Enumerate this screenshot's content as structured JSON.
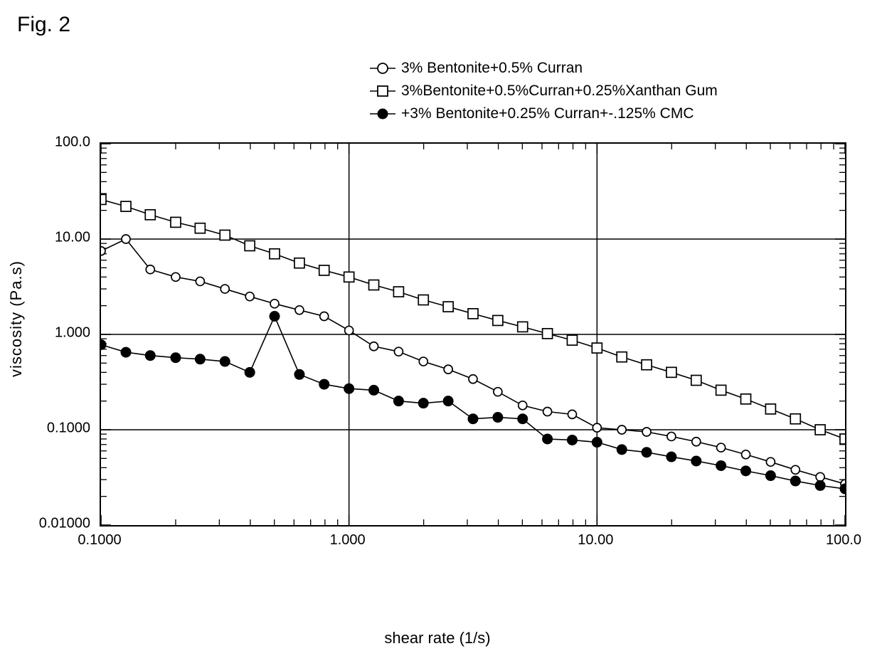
{
  "figure_label": "Fig. 2",
  "legend": {
    "position": "top-right",
    "fontsize": 21,
    "items": [
      {
        "marker": "circle-open",
        "label": "3% Bentonite+0.5% Curran"
      },
      {
        "marker": "square-open",
        "label": "3%Bentonite+0.5%Curran+0.25%Xanthan Gum"
      },
      {
        "marker": "circle-filled",
        "label": "+3% Bentonite+0.25% Curran+-.125% CMC"
      }
    ]
  },
  "chart": {
    "type": "line-scatter-loglog",
    "background_color": "#ffffff",
    "border_color": "#000000",
    "grid_color": "#000000",
    "xlabel": "shear rate (1/s)",
    "ylabel": "viscosity (Pa.s)",
    "label_fontsize": 22,
    "tick_fontsize": 20,
    "xscale": "log",
    "yscale": "log",
    "xlim": [
      0.1,
      100
    ],
    "ylim": [
      0.01,
      100
    ],
    "xticks": [
      0.1,
      1,
      10,
      100
    ],
    "xtick_labels": [
      "0.1000",
      "1.000",
      "10.00",
      "100.0"
    ],
    "yticks": [
      0.01,
      0.1,
      1,
      10,
      100
    ],
    "ytick_labels": [
      "0.01000",
      "0.1000",
      "1.000",
      "10.00",
      "100.0"
    ],
    "minor_ticks": [
      2,
      3,
      4,
      5,
      6,
      7,
      8,
      9
    ],
    "line_width": 1.6,
    "marker_size": 12,
    "series": [
      {
        "name": "3% Bentonite+0.5% Curran",
        "marker": "circle-open",
        "line_color": "#000000",
        "marker_fill": "none",
        "marker_stroke": "#000000",
        "data": [
          [
            0.1,
            7.5
          ],
          [
            0.126,
            10.0
          ],
          [
            0.158,
            4.8
          ],
          [
            0.2,
            4.0
          ],
          [
            0.251,
            3.6
          ],
          [
            0.316,
            3.0
          ],
          [
            0.398,
            2.5
          ],
          [
            0.501,
            2.1
          ],
          [
            0.631,
            1.8
          ],
          [
            0.794,
            1.55
          ],
          [
            1.0,
            1.1
          ],
          [
            1.259,
            0.75
          ],
          [
            1.585,
            0.66
          ],
          [
            1.995,
            0.52
          ],
          [
            2.512,
            0.43
          ],
          [
            3.162,
            0.34
          ],
          [
            3.981,
            0.25
          ],
          [
            5.012,
            0.18
          ],
          [
            6.31,
            0.155
          ],
          [
            7.943,
            0.145
          ],
          [
            10.0,
            0.105
          ],
          [
            12.59,
            0.1
          ],
          [
            15.85,
            0.095
          ],
          [
            19.95,
            0.085
          ],
          [
            25.12,
            0.075
          ],
          [
            31.62,
            0.065
          ],
          [
            39.81,
            0.055
          ],
          [
            50.12,
            0.046
          ],
          [
            63.1,
            0.038
          ],
          [
            79.43,
            0.032
          ],
          [
            100.0,
            0.027
          ]
        ]
      },
      {
        "name": "3%Bentonite+0.5%Curran+0.25%Xanthan Gum",
        "marker": "square-open",
        "line_color": "#000000",
        "marker_fill": "none",
        "marker_stroke": "#000000",
        "data": [
          [
            0.1,
            26.0
          ],
          [
            0.126,
            22.0
          ],
          [
            0.158,
            18.0
          ],
          [
            0.2,
            15.0
          ],
          [
            0.251,
            13.0
          ],
          [
            0.316,
            11.0
          ],
          [
            0.398,
            8.5
          ],
          [
            0.501,
            7.0
          ],
          [
            0.631,
            5.6
          ],
          [
            0.794,
            4.7
          ],
          [
            1.0,
            4.0
          ],
          [
            1.259,
            3.3
          ],
          [
            1.585,
            2.8
          ],
          [
            1.995,
            2.3
          ],
          [
            2.512,
            1.95
          ],
          [
            3.162,
            1.65
          ],
          [
            3.981,
            1.4
          ],
          [
            5.012,
            1.2
          ],
          [
            6.31,
            1.02
          ],
          [
            7.943,
            0.87
          ],
          [
            10.0,
            0.72
          ],
          [
            12.59,
            0.58
          ],
          [
            15.85,
            0.48
          ],
          [
            19.95,
            0.4
          ],
          [
            25.12,
            0.33
          ],
          [
            31.62,
            0.26
          ],
          [
            39.81,
            0.21
          ],
          [
            50.12,
            0.165
          ],
          [
            63.1,
            0.13
          ],
          [
            79.43,
            0.1
          ],
          [
            100.0,
            0.08
          ]
        ]
      },
      {
        "name": "+3% Bentonite+0.25% Curran+-.125% CMC",
        "marker": "circle-filled",
        "line_color": "#000000",
        "marker_fill": "#000000",
        "marker_stroke": "#000000",
        "data": [
          [
            0.1,
            0.78
          ],
          [
            0.126,
            0.65
          ],
          [
            0.158,
            0.6
          ],
          [
            0.2,
            0.57
          ],
          [
            0.251,
            0.55
          ],
          [
            0.316,
            0.52
          ],
          [
            0.398,
            0.4
          ],
          [
            0.501,
            1.55
          ],
          [
            0.631,
            0.38
          ],
          [
            0.794,
            0.3
          ],
          [
            1.0,
            0.27
          ],
          [
            1.259,
            0.26
          ],
          [
            1.585,
            0.2
          ],
          [
            1.995,
            0.19
          ],
          [
            2.512,
            0.2
          ],
          [
            3.162,
            0.13
          ],
          [
            3.981,
            0.135
          ],
          [
            5.012,
            0.13
          ],
          [
            6.31,
            0.08
          ],
          [
            7.943,
            0.078
          ],
          [
            10.0,
            0.074
          ],
          [
            12.59,
            0.062
          ],
          [
            15.85,
            0.058
          ],
          [
            19.95,
            0.052
          ],
          [
            25.12,
            0.047
          ],
          [
            31.62,
            0.042
          ],
          [
            39.81,
            0.037
          ],
          [
            50.12,
            0.033
          ],
          [
            63.1,
            0.029
          ],
          [
            79.43,
            0.026
          ],
          [
            100.0,
            0.024
          ]
        ]
      }
    ]
  }
}
